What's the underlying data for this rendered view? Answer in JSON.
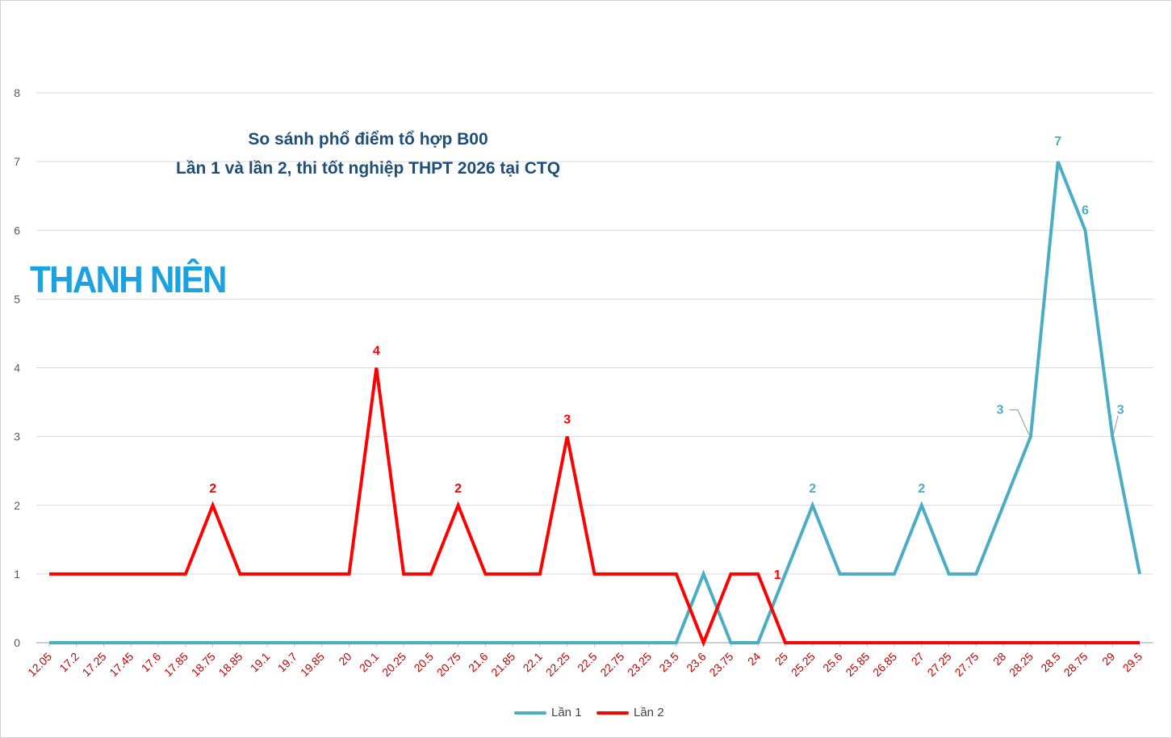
{
  "logo_text": "THANH NIÊN",
  "chart_data": {
    "type": "line",
    "title": "So sánh phổ điểm tổ hợp B00",
    "subtitle": "Lần 1 và lần 2, thi tốt nghiệp THPT 2026 tại CTQ",
    "xlabel": "",
    "ylabel": "",
    "ylim": [
      0,
      8
    ],
    "yticks": [
      "0",
      "1",
      "2",
      "3",
      "4",
      "5",
      "6",
      "7",
      "8"
    ],
    "grid": true,
    "legend_position": "bottom",
    "categories": [
      "12.05",
      "17.2",
      "17.25",
      "17.45",
      "17.6",
      "17.85",
      "18.75",
      "18.85",
      "19.1",
      "19.7",
      "19.85",
      "20",
      "20.1",
      "20.25",
      "20.5",
      "20.75",
      "21.6",
      "21.85",
      "22.1",
      "22.25",
      "22.5",
      "22.75",
      "23.25",
      "23.5",
      "23.6",
      "23.75",
      "24",
      "25",
      "25.25",
      "25.6",
      "25.85",
      "26.85",
      "27",
      "27.25",
      "27.75",
      "28",
      "28.25",
      "28.5",
      "28.75",
      "29",
      "29.5"
    ],
    "series": [
      {
        "name": "Lần 1",
        "color": "#4bacc6",
        "values": [
          0,
          0,
          0,
          0,
          0,
          0,
          0,
          0,
          0,
          0,
          0,
          0,
          0,
          0,
          0,
          0,
          0,
          0,
          0,
          0,
          0,
          0,
          0,
          0,
          1,
          0,
          0,
          1,
          2,
          1,
          1,
          1,
          2,
          1,
          1,
          2,
          3,
          7,
          6,
          3,
          1
        ],
        "labels": {
          "28": "2",
          "32": "2",
          "36": "3",
          "37": "7",
          "38": "6",
          "39": "3"
        }
      },
      {
        "name": "Lần 2",
        "color": "#ff0000",
        "values": [
          1,
          1,
          1,
          1,
          1,
          1,
          2,
          1,
          1,
          1,
          1,
          1,
          4,
          1,
          1,
          2,
          1,
          1,
          1,
          3,
          1,
          1,
          1,
          1,
          0,
          1,
          1,
          0,
          0,
          0,
          0,
          0,
          0,
          0,
          0,
          0,
          0,
          0,
          0,
          0,
          0
        ],
        "labels": {
          "6": "2",
          "12": "4",
          "15": "2",
          "19": "3",
          "26": "1"
        }
      }
    ],
    "tick_label_color": "#c00000",
    "axis_label_color": "#595959"
  }
}
